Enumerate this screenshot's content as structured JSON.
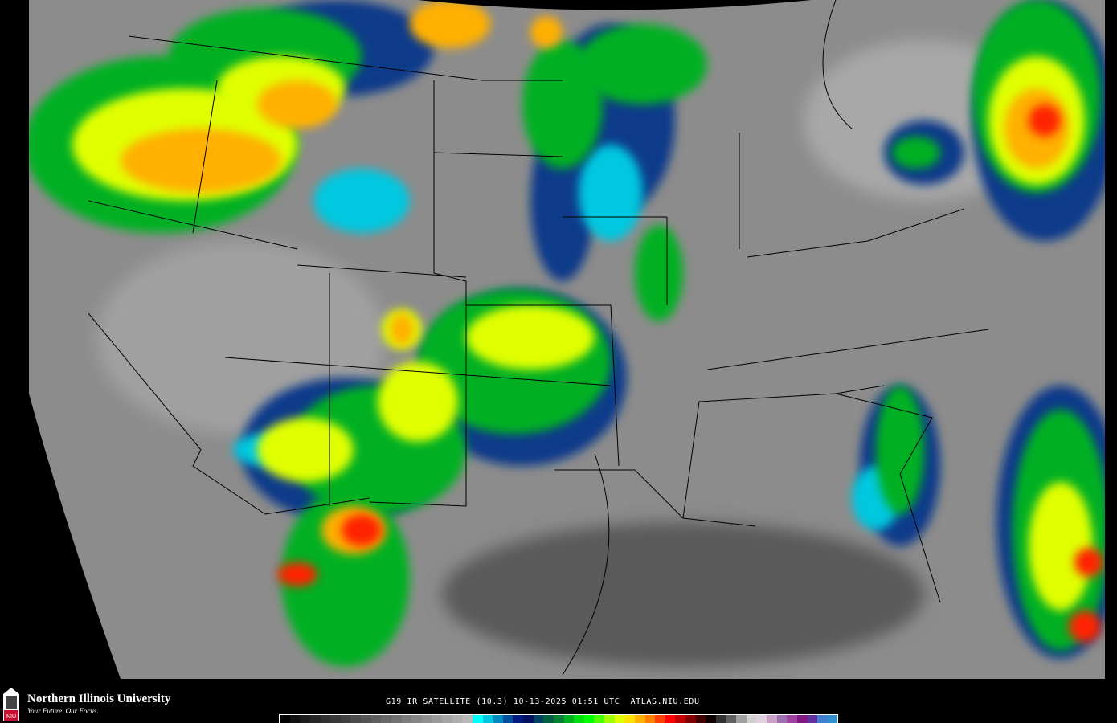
{
  "product_title": "G19 IR SATELLITE (10.3) 10-13-2025 01:51 UTC",
  "site": "ATLAS.NIU.EDU",
  "logo": {
    "name": "Northern Illinois University",
    "tagline": "Your Future. Our Focus.",
    "mark": "NIU"
  },
  "colorbar": {
    "colors": [
      "#000000",
      "#101010",
      "#1c1c1c",
      "#262626",
      "#303030",
      "#383838",
      "#404040",
      "#4a4a4a",
      "#545454",
      "#5e5e5e",
      "#686868",
      "#727272",
      "#7c7c7c",
      "#868686",
      "#909090",
      "#9a9a9a",
      "#a4a4a4",
      "#aeaeae",
      "#b8b8b8",
      "#00ffff",
      "#00c8e0",
      "#0088c0",
      "#0050a0",
      "#001a80",
      "#001060",
      "#004060",
      "#006040",
      "#008030",
      "#00b020",
      "#00e010",
      "#00ff00",
      "#50ff00",
      "#a0ff00",
      "#e0ff00",
      "#ffe000",
      "#ffb000",
      "#ff8000",
      "#ff4000",
      "#ff0000",
      "#c00000",
      "#800000",
      "#400000",
      "#100000",
      "#303030",
      "#606060",
      "#a0a0a0",
      "#d0d0d0",
      "#e0d0e0",
      "#c8a0c8",
      "#a070b0",
      "#a040a0",
      "#801880",
      "#6030a0",
      "#4080d0",
      "#3090d0"
    ]
  }
}
